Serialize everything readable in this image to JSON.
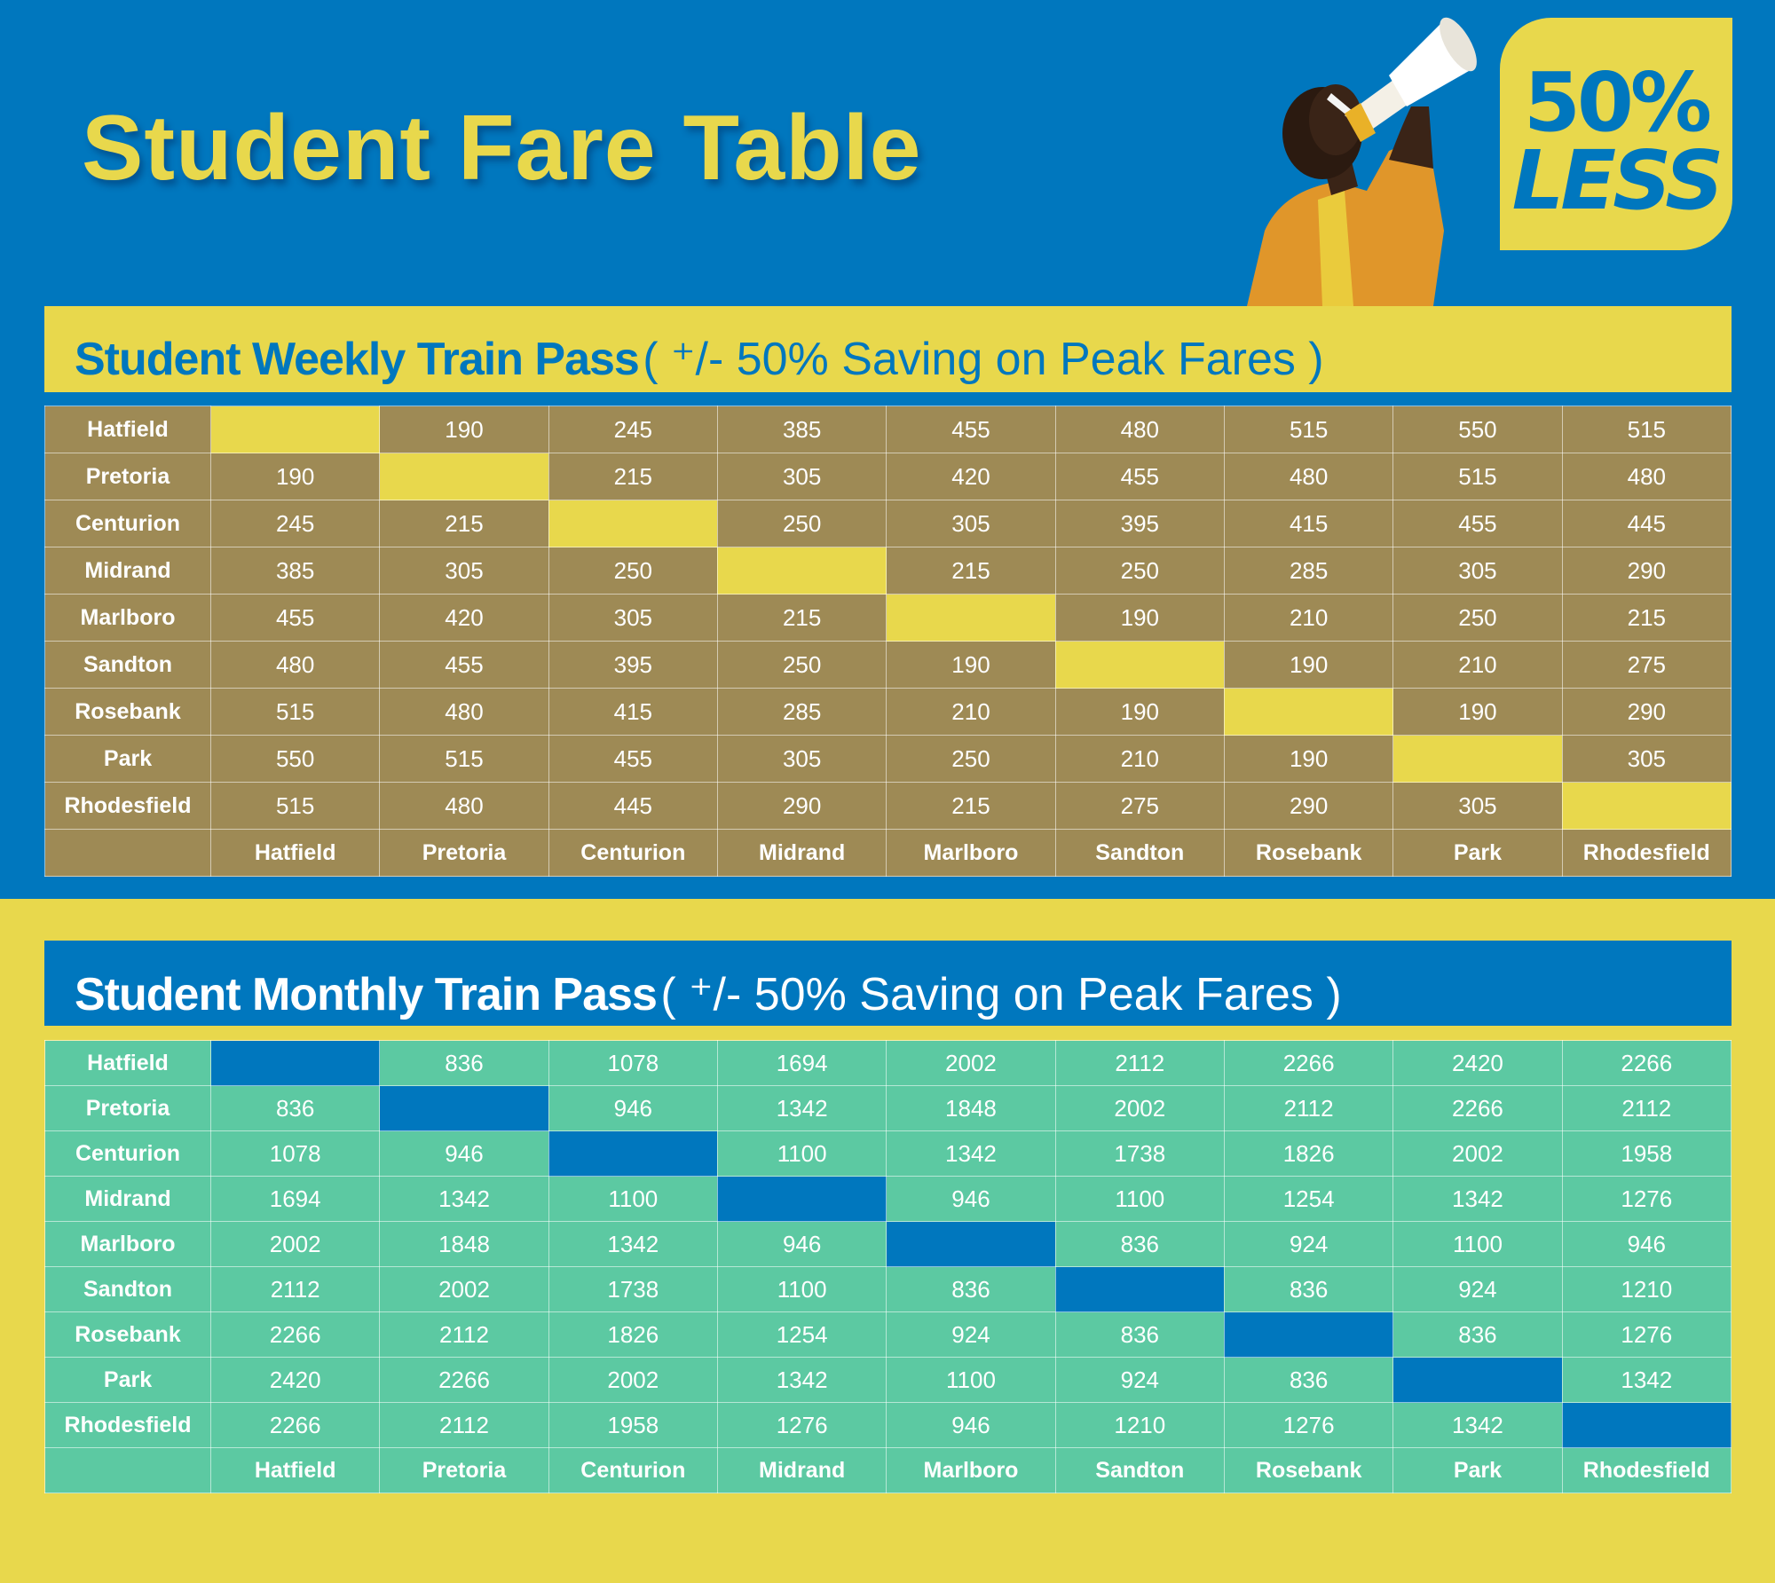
{
  "header": {
    "title": "Student Fare Table",
    "badge": {
      "line1": "50%",
      "line2": "LESS"
    },
    "image_alt": "person-shouting-into-megaphone"
  },
  "colors": {
    "blue": "#0077BE",
    "yellow": "#E8D84C",
    "weekly_cell": "#9E8A55",
    "monthly_cell": "#5CC9A2",
    "jacket_orange": "#E0962A"
  },
  "stations": [
    "Hatfield",
    "Pretoria",
    "Centurion",
    "Midrand",
    "Marlboro",
    "Sandton",
    "Rosebank",
    "Park",
    "Rhodesfield"
  ],
  "weekly": {
    "title_bold": "Student Weekly Train Pass",
    "title_light": "( ⁺/- 50% Saving on Peak Fares )",
    "rows": [
      [
        "",
        "190",
        "245",
        "385",
        "455",
        "480",
        "515",
        "550",
        "515"
      ],
      [
        "190",
        "",
        "215",
        "305",
        "420",
        "455",
        "480",
        "515",
        "480"
      ],
      [
        "245",
        "215",
        "",
        "250",
        "305",
        "395",
        "415",
        "455",
        "445"
      ],
      [
        "385",
        "305",
        "250",
        "",
        "215",
        "250",
        "285",
        "305",
        "290"
      ],
      [
        "455",
        "420",
        "305",
        "215",
        "",
        "190",
        "210",
        "250",
        "215"
      ],
      [
        "480",
        "455",
        "395",
        "250",
        "190",
        "",
        "190",
        "210",
        "275"
      ],
      [
        "515",
        "480",
        "415",
        "285",
        "210",
        "190",
        "",
        "190",
        "290"
      ],
      [
        "550",
        "515",
        "455",
        "305",
        "250",
        "210",
        "190",
        "",
        "305"
      ],
      [
        "515",
        "480",
        "445",
        "290",
        "215",
        "275",
        "290",
        "305",
        ""
      ]
    ]
  },
  "monthly": {
    "title_bold": "Student Monthly Train Pass",
    "title_light": "( ⁺/- 50% Saving on Peak Fares )",
    "rows": [
      [
        "",
        "836",
        "1078",
        "1694",
        "2002",
        "2112",
        "2266",
        "2420",
        "2266"
      ],
      [
        "836",
        "",
        "946",
        "1342",
        "1848",
        "2002",
        "2112",
        "2266",
        "2112"
      ],
      [
        "1078",
        "946",
        "",
        "1100",
        "1342",
        "1738",
        "1826",
        "2002",
        "1958"
      ],
      [
        "1694",
        "1342",
        "1100",
        "",
        "946",
        "1100",
        "1254",
        "1342",
        "1276"
      ],
      [
        "2002",
        "1848",
        "1342",
        "946",
        "",
        "836",
        "924",
        "1100",
        "946"
      ],
      [
        "2112",
        "2002",
        "1738",
        "1100",
        "836",
        "",
        "836",
        "924",
        "1210"
      ],
      [
        "2266",
        "2112",
        "1826",
        "1254",
        "924",
        "836",
        "",
        "836",
        "1276"
      ],
      [
        "2420",
        "2266",
        "2002",
        "1342",
        "1100",
        "924",
        "836",
        "",
        "1342"
      ],
      [
        "2266",
        "2112",
        "1958",
        "1276",
        "946",
        "1210",
        "1276",
        "1342",
        ""
      ]
    ]
  },
  "chart_data": [
    {
      "type": "table",
      "title": "Student Weekly Train Pass ( +/- 50% Saving on Peak Fares )",
      "row_labels": [
        "Hatfield",
        "Pretoria",
        "Centurion",
        "Midrand",
        "Marlboro",
        "Sandton",
        "Rosebank",
        "Park",
        "Rhodesfield"
      ],
      "column_labels": [
        "Hatfield",
        "Pretoria",
        "Centurion",
        "Midrand",
        "Marlboro",
        "Sandton",
        "Rosebank",
        "Park",
        "Rhodesfield"
      ],
      "values": [
        [
          null,
          190,
          245,
          385,
          455,
          480,
          515,
          550,
          515
        ],
        [
          190,
          null,
          215,
          305,
          420,
          455,
          480,
          515,
          480
        ],
        [
          245,
          215,
          null,
          250,
          305,
          395,
          415,
          455,
          445
        ],
        [
          385,
          305,
          250,
          null,
          215,
          250,
          285,
          305,
          290
        ],
        [
          455,
          420,
          305,
          215,
          null,
          190,
          210,
          250,
          215
        ],
        [
          480,
          455,
          395,
          250,
          190,
          null,
          190,
          210,
          275
        ],
        [
          515,
          480,
          415,
          285,
          210,
          190,
          null,
          190,
          290
        ],
        [
          550,
          515,
          455,
          305,
          250,
          210,
          190,
          null,
          305
        ],
        [
          515,
          480,
          445,
          290,
          215,
          275,
          290,
          305,
          null
        ]
      ]
    },
    {
      "type": "table",
      "title": "Student Monthly Train Pass ( +/- 50% Saving on Peak Fares )",
      "row_labels": [
        "Hatfield",
        "Pretoria",
        "Centurion",
        "Midrand",
        "Marlboro",
        "Sandton",
        "Rosebank",
        "Park",
        "Rhodesfield"
      ],
      "column_labels": [
        "Hatfield",
        "Pretoria",
        "Centurion",
        "Midrand",
        "Marlboro",
        "Sandton",
        "Rosebank",
        "Park",
        "Rhodesfield"
      ],
      "values": [
        [
          null,
          836,
          1078,
          1694,
          2002,
          2112,
          2266,
          2420,
          2266
        ],
        [
          836,
          null,
          946,
          1342,
          1848,
          2002,
          2112,
          2266,
          2112
        ],
        [
          1078,
          946,
          null,
          1100,
          1342,
          1738,
          1826,
          2002,
          1958
        ],
        [
          1694,
          1342,
          1100,
          null,
          946,
          1100,
          1254,
          1342,
          1276
        ],
        [
          2002,
          1848,
          1342,
          946,
          null,
          836,
          924,
          1100,
          946
        ],
        [
          2112,
          2002,
          1738,
          1100,
          836,
          null,
          836,
          924,
          1210
        ],
        [
          2266,
          2112,
          1826,
          1254,
          924,
          836,
          null,
          836,
          1276
        ],
        [
          2420,
          2266,
          2002,
          1342,
          1100,
          924,
          836,
          null,
          1342
        ],
        [
          2266,
          2112,
          1958,
          1276,
          946,
          1210,
          1276,
          1342,
          null
        ]
      ]
    }
  ]
}
